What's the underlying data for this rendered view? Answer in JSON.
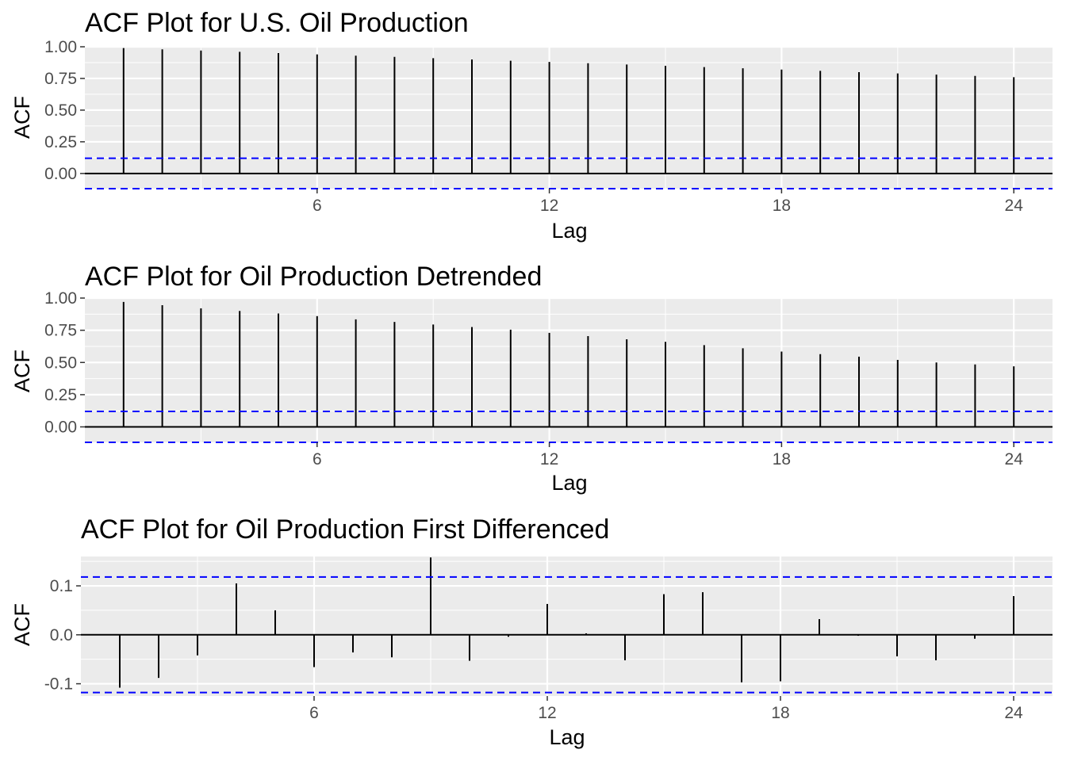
{
  "chart_data": [
    {
      "type": "bar",
      "title": "ACF Plot for U.S. Oil Production",
      "xlabel": "Lag",
      "ylabel": "ACF",
      "x": [
        1,
        2,
        3,
        4,
        5,
        6,
        7,
        8,
        9,
        10,
        11,
        12,
        13,
        14,
        15,
        16,
        17,
        18,
        19,
        20,
        21,
        22,
        23,
        24
      ],
      "values": [
        0.99,
        0.98,
        0.97,
        0.96,
        0.95,
        0.94,
        0.93,
        0.92,
        0.91,
        0.9,
        0.89,
        0.88,
        0.87,
        0.86,
        0.85,
        0.84,
        0.83,
        0.82,
        0.81,
        0.8,
        0.79,
        0.78,
        0.77,
        0.76
      ],
      "ci": 0.12,
      "xlim": [
        0,
        25
      ],
      "ylim": [
        -0.12,
        1.0
      ],
      "xticks": [
        6,
        12,
        18,
        24
      ],
      "yticks": [
        0,
        0.25,
        0.5,
        0.75,
        1.0
      ],
      "yticklabels": [
        "0.00",
        "0.25",
        "0.50",
        "0.75",
        "1.00"
      ],
      "grid": true
    },
    {
      "type": "bar",
      "title": "ACF Plot for Oil Production Detrended",
      "xlabel": "Lag",
      "ylabel": "ACF",
      "x": [
        1,
        2,
        3,
        4,
        5,
        6,
        7,
        8,
        9,
        10,
        11,
        12,
        13,
        14,
        15,
        16,
        17,
        18,
        19,
        20,
        21,
        22,
        23,
        24
      ],
      "values": [
        0.97,
        0.945,
        0.92,
        0.9,
        0.88,
        0.86,
        0.835,
        0.815,
        0.795,
        0.775,
        0.755,
        0.73,
        0.705,
        0.68,
        0.66,
        0.635,
        0.61,
        0.585,
        0.565,
        0.545,
        0.52,
        0.5,
        0.485,
        0.47
      ],
      "ci": 0.12,
      "xlim": [
        0,
        25
      ],
      "ylim": [
        -0.12,
        1.0
      ],
      "xticks": [
        6,
        12,
        18,
        24
      ],
      "yticks": [
        0,
        0.25,
        0.5,
        0.75,
        1.0
      ],
      "yticklabels": [
        "0.00",
        "0.25",
        "0.50",
        "0.75",
        "1.00"
      ],
      "grid": true
    },
    {
      "type": "bar",
      "title": "ACF Plot for Oil Production First Differenced",
      "xlabel": "Lag",
      "ylabel": "ACF",
      "x": [
        1,
        2,
        3,
        4,
        5,
        6,
        7,
        8,
        9,
        10,
        11,
        12,
        13,
        14,
        15,
        16,
        17,
        18,
        19,
        20,
        21,
        22,
        23,
        24
      ],
      "values": [
        -0.108,
        -0.088,
        -0.042,
        0.105,
        0.05,
        -0.066,
        -0.036,
        -0.046,
        0.158,
        -0.053,
        -0.004,
        0.063,
        0.003,
        -0.052,
        0.083,
        0.087,
        -0.097,
        -0.095,
        0.032,
        -0.002,
        -0.044,
        -0.052,
        -0.008,
        0.079
      ],
      "ci": 0.118,
      "xlim": [
        0,
        25
      ],
      "ylim": [
        -0.125,
        0.16
      ],
      "xticks": [
        6,
        12,
        18,
        24
      ],
      "yticks": [
        -0.1,
        0.0,
        0.1
      ],
      "yticklabels": [
        "-0.1",
        "0.0",
        "0.1"
      ],
      "grid": true
    }
  ],
  "colors": {
    "panel_bg": "#ebebeb",
    "grid": "#ffffff",
    "ci_line": "#0000ff",
    "bars": "#000000",
    "tick_text": "#4d4d4d"
  }
}
